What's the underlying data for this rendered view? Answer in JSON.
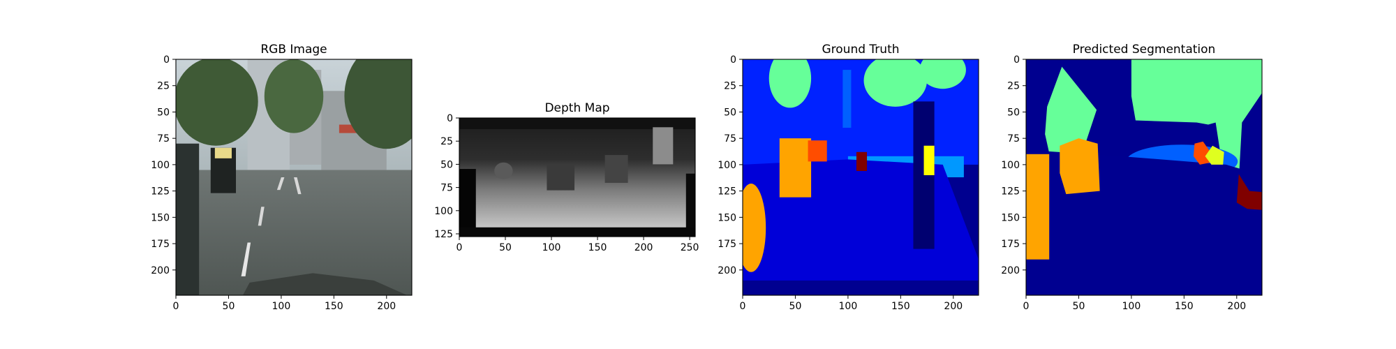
{
  "figure": {
    "background": "#ffffff"
  },
  "chart_data": [
    {
      "type": "image",
      "title": "RGB Image",
      "xlabel": "",
      "ylabel": "",
      "xlim": [
        0,
        224
      ],
      "ylim": [
        224,
        0
      ],
      "xticks": [
        0,
        50,
        100,
        150,
        200
      ],
      "yticks": [
        0,
        25,
        50,
        75,
        100,
        125,
        150,
        175,
        200
      ],
      "content": "street-scene-photo"
    },
    {
      "type": "heatmap",
      "title": "Depth Map",
      "xlabel": "",
      "ylabel": "",
      "xlim": [
        0,
        256
      ],
      "ylim": [
        128,
        0
      ],
      "xticks": [
        0,
        50,
        100,
        150,
        200,
        250
      ],
      "yticks": [
        0,
        25,
        50,
        75,
        100,
        125
      ],
      "colormap": "gray",
      "content": "depth-grayscale"
    },
    {
      "type": "heatmap",
      "title": "Ground Truth",
      "xlabel": "",
      "ylabel": "",
      "xlim": [
        0,
        224
      ],
      "ylim": [
        224,
        0
      ],
      "xticks": [
        0,
        50,
        100,
        150,
        200
      ],
      "yticks": [
        0,
        25,
        50,
        75,
        100,
        125,
        150,
        175,
        200
      ],
      "colormap": "jet",
      "content": "segmentation-ground-truth"
    },
    {
      "type": "heatmap",
      "title": "Predicted Segmentation",
      "xlabel": "",
      "ylabel": "",
      "xlim": [
        0,
        224
      ],
      "ylim": [
        224,
        0
      ],
      "xticks": [
        0,
        50,
        100,
        150,
        200
      ],
      "yticks": [
        0,
        25,
        50,
        75,
        100,
        125,
        150,
        175,
        200
      ],
      "colormap": "jet",
      "content": "segmentation-prediction"
    }
  ]
}
